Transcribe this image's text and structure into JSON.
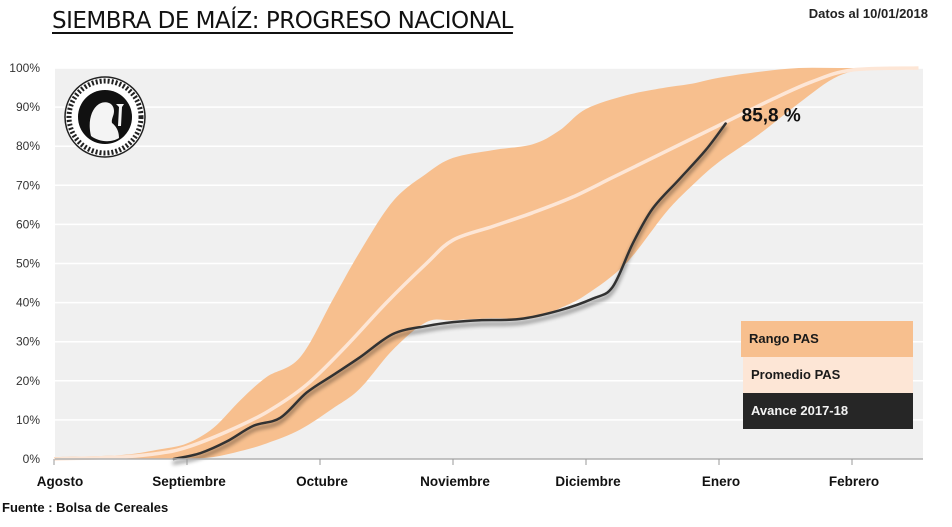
{
  "header": {
    "title": "SIEMBRA DE MAÍZ: PROGRESO NACIONAL",
    "date_label": "Datos al 10/01/2018"
  },
  "footer": {
    "source": "Fuente : Bolsa de Cereales"
  },
  "logo": {
    "icon": "bolsa-de-cereales-seal-icon",
    "text": "Constantia · et · Labore · Buenos Aires · 1854"
  },
  "colors": {
    "range": "#f7bf8e",
    "average": "#fde6d6",
    "current": "#333333",
    "plot_bg": "#f0f0f0",
    "grid": "#ffffff"
  },
  "legend": {
    "items": [
      {
        "label": "Rango PAS"
      },
      {
        "label": "Promedio PAS"
      },
      {
        "label": "Avance 2017-18"
      }
    ]
  },
  "chart_data": {
    "type": "area",
    "title": "SIEMBRA DE MAÍZ: PROGRESO NACIONAL",
    "xlabel": "",
    "ylabel": "",
    "x_unit": "months since start of August",
    "xlim": [
      0,
      6.5
    ],
    "ylim": [
      0,
      100
    ],
    "grid": true,
    "legend_position": "bottom-right",
    "x_ticks": [
      0,
      1,
      2,
      3,
      4,
      5,
      6
    ],
    "x_tick_labels": [
      "Agosto",
      "Septiembre",
      "Octubre",
      "Noviembre",
      "Diciembre",
      "Enero",
      "Febrero"
    ],
    "y_ticks": [
      0,
      10,
      20,
      30,
      40,
      50,
      60,
      70,
      80,
      90,
      100
    ],
    "y_tick_labels": [
      "0%",
      "10%",
      "20%",
      "30%",
      "40%",
      "50%",
      "60%",
      "70%",
      "80%",
      "90%",
      "100%"
    ],
    "annotation": {
      "text": "85,8 %",
      "x": 5.05,
      "y": 85.8
    },
    "series": [
      {
        "name": "Rango PAS",
        "kind": "band",
        "x": [
          0,
          0.5,
          0.8,
          1.0,
          1.2,
          1.4,
          1.6,
          1.85,
          2.1,
          2.3,
          2.55,
          2.8,
          3.0,
          3.3,
          3.6,
          3.8,
          4.0,
          4.3,
          4.6,
          4.8,
          5.0,
          5.3,
          5.6,
          5.9,
          6.2,
          6.5
        ],
        "upper": [
          0.5,
          1,
          2.5,
          4,
          8,
          15,
          21,
          26,
          41,
          53,
          66,
          73,
          77,
          79,
          80.5,
          84,
          89.5,
          93,
          95,
          96,
          97.5,
          99,
          100,
          100,
          100,
          100
        ],
        "lower": [
          0,
          0,
          0,
          0,
          0.5,
          2,
          4,
          7.5,
          13,
          18,
          28,
          35,
          35.5,
          36,
          36,
          38.5,
          42,
          50,
          63,
          70,
          76,
          83,
          91,
          98,
          100,
          100
        ]
      },
      {
        "name": "Promedio PAS",
        "kind": "line",
        "x": [
          0,
          0.5,
          0.8,
          1.0,
          1.3,
          1.6,
          1.9,
          2.2,
          2.5,
          2.8,
          3.0,
          3.3,
          3.6,
          3.9,
          4.2,
          4.5,
          4.8,
          5.1,
          5.4,
          5.7,
          6.0,
          6.5
        ],
        "values": [
          0,
          0.5,
          1.5,
          3,
          7,
          12,
          19,
          29,
          40,
          50,
          56,
          59.5,
          63,
          67,
          72,
          77,
          82,
          87,
          92,
          96.5,
          99.5,
          100
        ]
      },
      {
        "name": "Avance 2017-18",
        "kind": "line",
        "x": [
          0.9,
          1.1,
          1.3,
          1.5,
          1.7,
          1.9,
          2.1,
          2.3,
          2.55,
          2.8,
          3.0,
          3.2,
          3.5,
          3.8,
          4.05,
          4.2,
          4.35,
          4.5,
          4.7,
          4.9,
          5.05
        ],
        "values": [
          0,
          1.5,
          4.5,
          8.5,
          10.5,
          17,
          21.5,
          26,
          32,
          34,
          35,
          35.5,
          35.8,
          38,
          41,
          44,
          55,
          64,
          71.5,
          79,
          85.8
        ]
      }
    ]
  }
}
